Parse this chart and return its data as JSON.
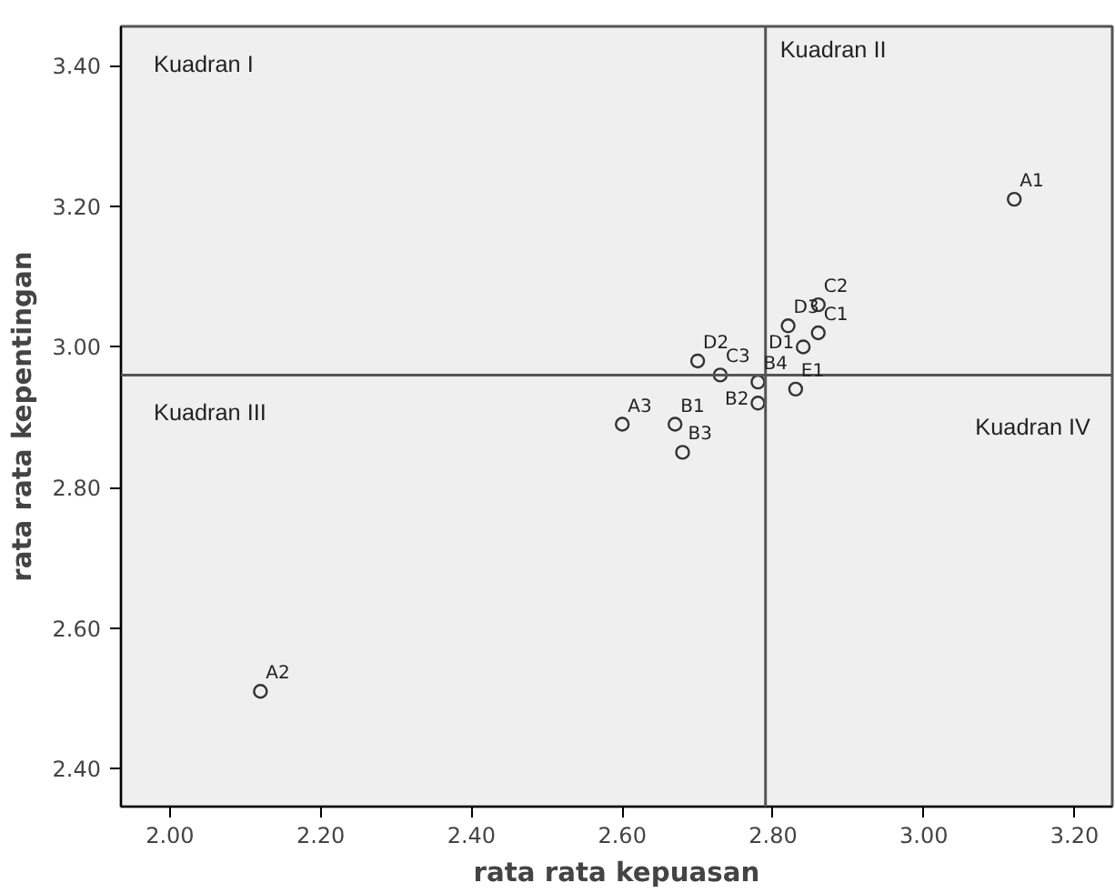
{
  "chart_data": {
    "type": "scatter",
    "xlabel": "rata rata kepuasan",
    "ylabel": "rata rata kepentingan",
    "xlim": [
      1.935,
      3.25
    ],
    "ylim": [
      2.346,
      3.456
    ],
    "xticks": [
      {
        "value": 2.0,
        "label": "2.00"
      },
      {
        "value": 2.2,
        "label": "2.20"
      },
      {
        "value": 2.4,
        "label": "2.40"
      },
      {
        "value": 2.6,
        "label": "2.60"
      },
      {
        "value": 2.8,
        "label": "2.80"
      },
      {
        "value": 3.0,
        "label": "3.00"
      },
      {
        "value": 3.2,
        "label": "3.20"
      }
    ],
    "yticks": [
      {
        "value": 2.4,
        "label": "2.40"
      },
      {
        "value": 2.6,
        "label": "2.60"
      },
      {
        "value": 2.8,
        "label": "2.80"
      },
      {
        "value": 3.0,
        "label": "3.00"
      },
      {
        "value": 3.2,
        "label": "3.20"
      },
      {
        "value": 3.4,
        "label": "3.40"
      }
    ],
    "grid": false,
    "marker": "circle",
    "series": [
      {
        "name": "A1",
        "color": "#333333",
        "x": [
          3.12
        ],
        "values": [
          3.21
        ]
      },
      {
        "name": "A2",
        "color": "#333333",
        "x": [
          2.12
        ],
        "values": [
          2.51
        ]
      },
      {
        "name": "A3",
        "color": "#333333",
        "x": [
          2.6
        ],
        "values": [
          2.89
        ]
      },
      {
        "name": "B1",
        "color": "#333333",
        "x": [
          2.67
        ],
        "values": [
          2.89
        ]
      },
      {
        "name": "B2",
        "color": "#333333",
        "x": [
          2.78
        ],
        "values": [
          2.92
        ]
      },
      {
        "name": "B3",
        "color": "#333333",
        "x": [
          2.68
        ],
        "values": [
          2.85
        ]
      },
      {
        "name": "B4",
        "color": "#333333",
        "x": [
          2.78
        ],
        "values": [
          2.95
        ]
      },
      {
        "name": "C1",
        "color": "#333333",
        "x": [
          2.86
        ],
        "values": [
          3.02
        ]
      },
      {
        "name": "C2",
        "color": "#333333",
        "x": [
          2.86
        ],
        "values": [
          3.06
        ]
      },
      {
        "name": "C3",
        "color": "#333333",
        "x": [
          2.73
        ],
        "values": [
          2.96
        ]
      },
      {
        "name": "D1",
        "color": "#333333",
        "x": [
          2.84
        ],
        "values": [
          3.0
        ]
      },
      {
        "name": "D2",
        "color": "#333333",
        "x": [
          2.7
        ],
        "values": [
          2.98
        ]
      },
      {
        "name": "D3",
        "color": "#333333",
        "x": [
          2.82
        ],
        "values": [
          3.03
        ]
      },
      {
        "name": "E1",
        "color": "#333333",
        "x": [
          2.83
        ],
        "values": [
          2.94
        ]
      }
    ],
    "ref_lines": [
      {
        "axis": "x",
        "value": 2.79,
        "color": "#555555"
      },
      {
        "axis": "y",
        "value": 2.96,
        "color": "#555555"
      }
    ],
    "annotations": [
      "Kuadran I",
      "Kuadran II",
      "Kuadran III",
      "Kuadran IV"
    ]
  }
}
